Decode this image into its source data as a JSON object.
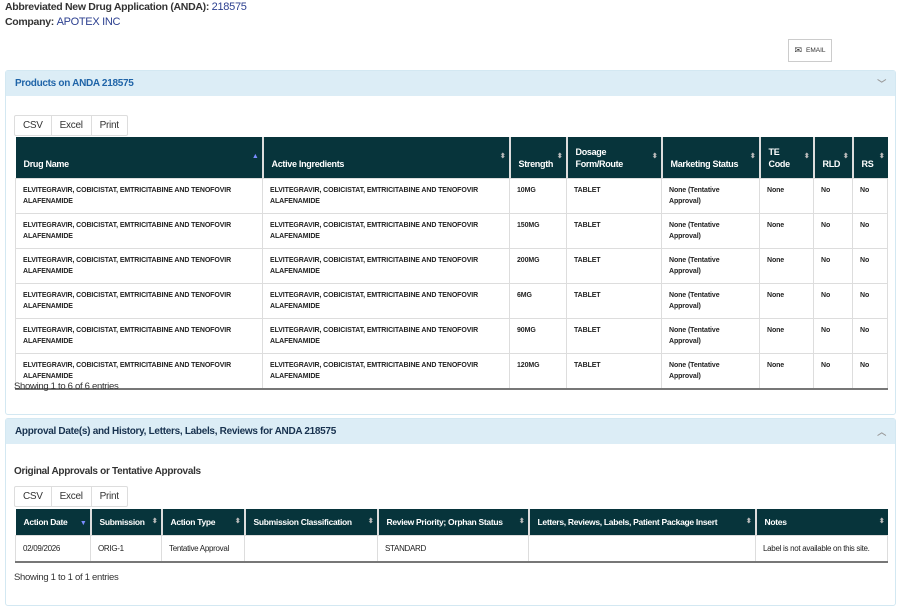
{
  "header": {
    "anda_label": "Abbreviated New Drug Application (ANDA):",
    "anda_number": "218575",
    "company_label": "Company:",
    "company_name": "APOTEX INC"
  },
  "email_button": {
    "label": "EMAIL",
    "icon": "envelope-icon"
  },
  "products": {
    "title": "Products on ANDA 218575",
    "export_buttons": [
      "CSV",
      "Excel",
      "Print"
    ],
    "columns": [
      "Drug Name",
      "Active Ingredients",
      "Strength",
      "Dosage Form/Route",
      "Marketing Status",
      "TE Code",
      "RLD",
      "RS"
    ],
    "rows": [
      [
        "ELVITEGRAVIR, COBICISTAT, EMTRICITABINE AND TENOFOVIR ALAFENAMIDE",
        "ELVITEGRAVIR, COBICISTAT, EMTRICITABINE AND TENOFOVIR ALAFENAMIDE",
        "10MG",
        "TABLET",
        "None (Tentative Approval)",
        "None",
        "No",
        "No"
      ],
      [
        "ELVITEGRAVIR, COBICISTAT, EMTRICITABINE AND TENOFOVIR ALAFENAMIDE",
        "ELVITEGRAVIR, COBICISTAT, EMTRICITABINE AND TENOFOVIR ALAFENAMIDE",
        "150MG",
        "TABLET",
        "None (Tentative Approval)",
        "None",
        "No",
        "No"
      ],
      [
        "ELVITEGRAVIR, COBICISTAT, EMTRICITABINE AND TENOFOVIR ALAFENAMIDE",
        "ELVITEGRAVIR, COBICISTAT, EMTRICITABINE AND TENOFOVIR ALAFENAMIDE",
        "200MG",
        "TABLET",
        "None (Tentative Approval)",
        "None",
        "No",
        "No"
      ],
      [
        "ELVITEGRAVIR, COBICISTAT, EMTRICITABINE AND TENOFOVIR ALAFENAMIDE",
        "ELVITEGRAVIR, COBICISTAT, EMTRICITABINE AND TENOFOVIR ALAFENAMIDE",
        "6MG",
        "TABLET",
        "None (Tentative Approval)",
        "None",
        "No",
        "No"
      ],
      [
        "ELVITEGRAVIR, COBICISTAT, EMTRICITABINE AND TENOFOVIR ALAFENAMIDE",
        "ELVITEGRAVIR, COBICISTAT, EMTRICITABINE AND TENOFOVIR ALAFENAMIDE",
        "90MG",
        "TABLET",
        "None (Tentative Approval)",
        "None",
        "No",
        "No"
      ],
      [
        "ELVITEGRAVIR, COBICISTAT, EMTRICITABINE AND TENOFOVIR ALAFENAMIDE",
        "ELVITEGRAVIR, COBICISTAT, EMTRICITABINE AND TENOFOVIR ALAFENAMIDE",
        "120MG",
        "TABLET",
        "None (Tentative Approval)",
        "None",
        "No",
        "No"
      ]
    ],
    "info": "Showing 1 to 6 of 6 entries"
  },
  "approvals": {
    "title": "Approval Date(s) and History, Letters, Labels, Reviews for ANDA 218575",
    "subtitle": "Original Approvals or Tentative Approvals",
    "export_buttons": [
      "CSV",
      "Excel",
      "Print"
    ],
    "columns": [
      "Action Date",
      "Submission",
      "Action Type",
      "Submission Classification",
      "Review Priority; Orphan Status",
      "Letters, Reviews, Labels, Patient Package Insert",
      "Notes"
    ],
    "rows": [
      [
        "02/09/2026",
        "ORIG-1",
        "Tentative Approval",
        "",
        "STANDARD",
        "",
        "Label is not available on this site."
      ]
    ],
    "info": "Showing 1 to 1 of 1 entries"
  },
  "colors": {
    "header_bg": "#07343b",
    "panel_header_bg": "#dcedf6",
    "link": "#2b3f8f"
  }
}
